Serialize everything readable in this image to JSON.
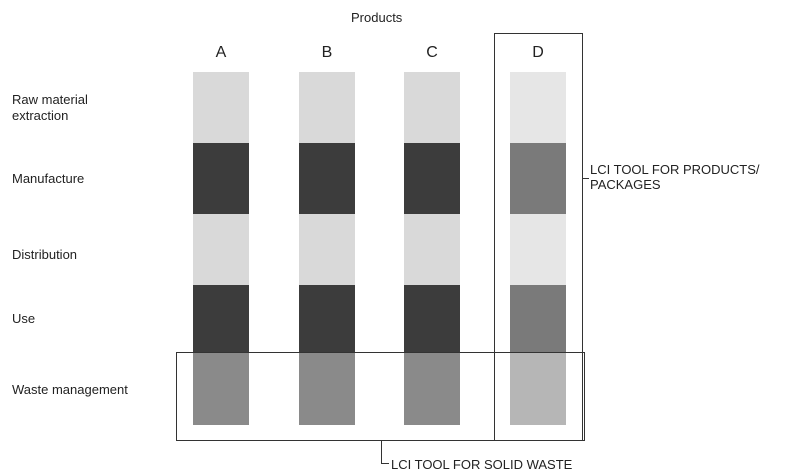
{
  "diagram": {
    "header": "Products",
    "products": [
      "A",
      "B",
      "C",
      "D"
    ],
    "stages": [
      "Raw material\nextraction",
      "Manufacture",
      "Distribution",
      "Use",
      "Waste management"
    ],
    "colors": {
      "light": "#d9d9d9",
      "dark": "#3c3c3c",
      "medium": "#8a8a8a",
      "d_light": "#e6e6e6",
      "d_dark": "#7a7a7a",
      "d_medium": "#b6b6b6"
    },
    "lci_products": "LCI TOOL FOR PRODUCTS/\nPACKAGES",
    "lci_waste": "LCI TOOL FOR SOLID WASTE"
  }
}
